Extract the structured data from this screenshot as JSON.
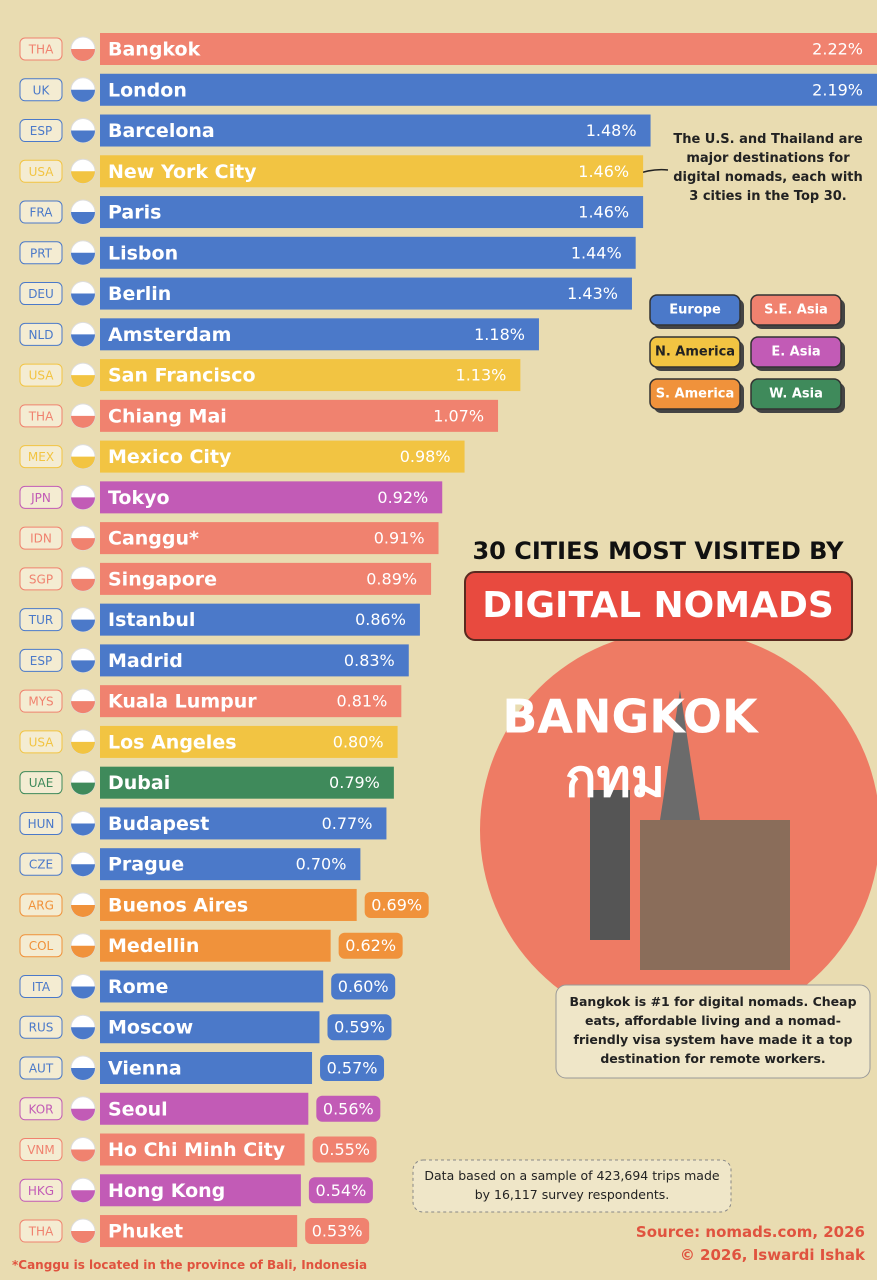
{
  "chart_data": {
    "type": "bar",
    "title": "30 CITIES MOST VISITED BY",
    "subtitle": "DIGITAL NOMADS",
    "categories": [
      "Bangkok",
      "London",
      "Barcelona",
      "New York City",
      "Paris",
      "Lisbon",
      "Berlin",
      "Amsterdam",
      "San Francisco",
      "Chiang Mai",
      "Mexico City",
      "Tokyo",
      "Canggu*",
      "Singapore",
      "Istanbul",
      "Madrid",
      "Kuala Lumpur",
      "Los Angeles",
      "Dubai",
      "Budapest",
      "Prague",
      "Buenos Aires",
      "Medellin",
      "Rome",
      "Moscow",
      "Vienna",
      "Seoul",
      "Ho Chi Minh City",
      "Hong Kong",
      "Phuket"
    ],
    "country_codes": [
      "THA",
      "UK",
      "ESP",
      "USA",
      "FRA",
      "PRT",
      "DEU",
      "NLD",
      "USA",
      "THA",
      "MEX",
      "JPN",
      "IDN",
      "SGP",
      "TUR",
      "ESP",
      "MYS",
      "USA",
      "UAE",
      "HUN",
      "CZE",
      "ARG",
      "COL",
      "ITA",
      "RUS",
      "AUT",
      "KOR",
      "VNM",
      "HKG",
      "THA"
    ],
    "values": [
      2.22,
      2.19,
      1.48,
      1.46,
      1.46,
      1.44,
      1.43,
      1.18,
      1.13,
      1.07,
      0.98,
      0.92,
      0.91,
      0.89,
      0.86,
      0.83,
      0.81,
      0.8,
      0.79,
      0.77,
      0.7,
      0.69,
      0.62,
      0.6,
      0.59,
      0.57,
      0.56,
      0.55,
      0.54,
      0.53
    ],
    "value_labels": [
      "2.22%",
      "2.19%",
      "1.48%",
      "1.46%",
      "1.46%",
      "1.44%",
      "1.43%",
      "1.18%",
      "1.13%",
      "1.07%",
      "0.98%",
      "0.92%",
      "0.91%",
      "0.89%",
      "0.86%",
      "0.83%",
      "0.81%",
      "0.80%",
      "0.79%",
      "0.77%",
      "0.70%",
      "0.69%",
      "0.62%",
      "0.60%",
      "0.59%",
      "0.57%",
      "0.56%",
      "0.55%",
      "0.54%",
      "0.53%"
    ],
    "colors": [
      "#f0826f",
      "#4b79c9",
      "#4b79c9",
      "#f2c442",
      "#4b79c9",
      "#4b79c9",
      "#4b79c9",
      "#4b79c9",
      "#f2c442",
      "#f0826f",
      "#f2c442",
      "#c25bb6",
      "#f0826f",
      "#f0826f",
      "#4b79c9",
      "#4b79c9",
      "#f0826f",
      "#f2c442",
      "#3f8a5b",
      "#4b79c9",
      "#4b79c9",
      "#f0923b",
      "#f0923b",
      "#4b79c9",
      "#4b79c9",
      "#4b79c9",
      "#c25bb6",
      "#f0826f",
      "#c25bb6",
      "#f0826f"
    ],
    "legend": [
      {
        "name": "Europe",
        "color": "#4b79c9"
      },
      {
        "name": "S.E. Asia",
        "color": "#f0826f"
      },
      {
        "name": "N. America",
        "color": "#f2c442"
      },
      {
        "name": "E. Asia",
        "color": "#c25bb6"
      },
      {
        "name": "S. America",
        "color": "#f0923b"
      },
      {
        "name": "W. Asia",
        "color": "#3f8a5b"
      }
    ],
    "annotation": "The U.S. and Thailand are major destinations for digital nomads, each with 3 cities in the Top 30.",
    "image_text": [
      "BANGKOK",
      "กทม"
    ],
    "highlight_note": "Bangkok is #1 for digital nomads. Cheap eats, affordable living and a nomad-friendly visa system have made it a top destination for remote workers.",
    "sample_note": "Data based on a sample of 423,694 trips made by 16,117 survey respondents.",
    "source": "Source: nomads.com, 2026",
    "credit": "© 2026, Iswardi Ishak",
    "footnote": "*Canggu is located in the province of Bali, Indonesia"
  }
}
